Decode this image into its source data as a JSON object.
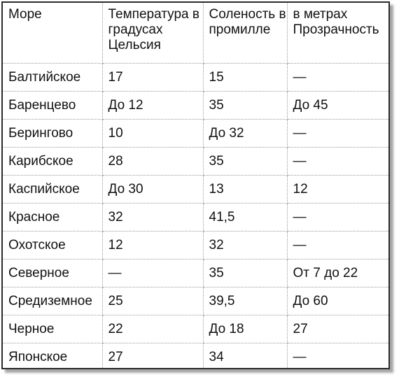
{
  "table": {
    "headers": [
      "Море",
      "Температура в градусах Цельсия",
      "Соленость в промилле",
      "в метрах Прозрачность"
    ],
    "rows": [
      [
        "Балтийское",
        "17",
        "15",
        "—"
      ],
      [
        "Баренцево",
        "До 12",
        "35",
        "До 45"
      ],
      [
        "Берингово",
        "10",
        "До 32",
        "—"
      ],
      [
        "Карибское",
        "28",
        "35",
        "—"
      ],
      [
        "Каспийское",
        "До 30",
        "13",
        "12"
      ],
      [
        "Красное",
        "32",
        "41,5",
        "—"
      ],
      [
        "Охотское",
        "12",
        "32",
        "—"
      ],
      [
        "Северное",
        "—",
        "35",
        "От 7 до 22"
      ],
      [
        "Средиземное",
        "25",
        "39,5",
        "До 60"
      ],
      [
        "Черное",
        "22",
        "До 18",
        "27"
      ],
      [
        "Японское",
        "27",
        "34",
        "—"
      ]
    ]
  }
}
